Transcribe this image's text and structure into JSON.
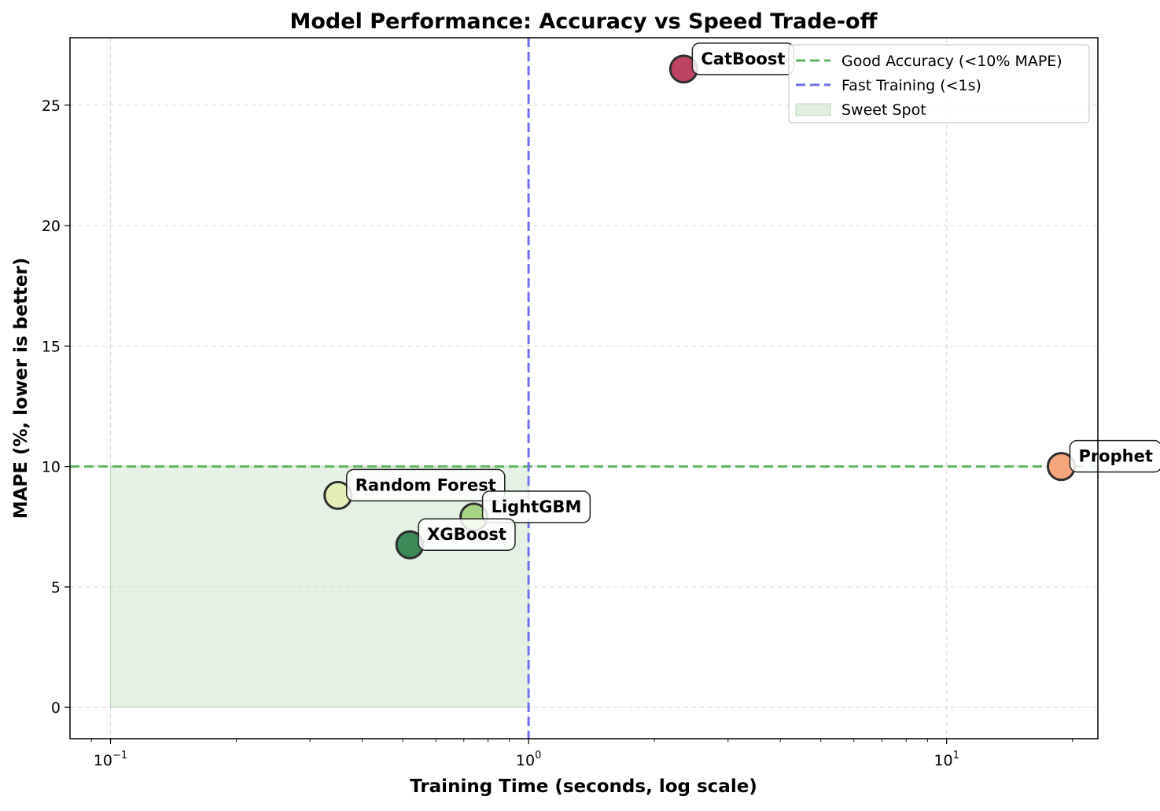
{
  "chart_data": {
    "type": "scatter",
    "title": "Model Performance: Accuracy vs Speed Trade-off",
    "xlabel": "Training Time (seconds, log scale)",
    "ylabel": "MAPE (%, lower is better)",
    "xscale": "log",
    "xlim": [
      0.08,
      23
    ],
    "ylim": [
      -1.3,
      27.8
    ],
    "x_ticks": [
      {
        "value": 0.1,
        "base": "10",
        "exp": "−1"
      },
      {
        "value": 1,
        "base": "10",
        "exp": "0"
      },
      {
        "value": 10,
        "base": "10",
        "exp": "1"
      }
    ],
    "y_ticks": [
      0,
      5,
      10,
      15,
      20,
      25
    ],
    "grid": true,
    "legend_position": "top-right",
    "points": [
      {
        "label": "CatBoost",
        "x": 2.35,
        "y": 26.5,
        "color": "#be4262"
      },
      {
        "label": "Prophet",
        "x": 18.8,
        "y": 10.0,
        "color": "#f5a57c"
      },
      {
        "label": "Random Forest",
        "x": 0.35,
        "y": 8.8,
        "color": "#e3eeb6"
      },
      {
        "label": "LightGBM",
        "x": 0.74,
        "y": 7.9,
        "color": "#a5d484"
      },
      {
        "label": "XGBoost",
        "x": 0.52,
        "y": 6.75,
        "color": "#3b8a58"
      }
    ],
    "reference_lines": [
      {
        "orientation": "horizontal",
        "value": 10,
        "label": "Good Accuracy (<10% MAPE)",
        "color": "#5fb65f"
      },
      {
        "orientation": "vertical",
        "value": 1,
        "label": "Fast Training (<1s)",
        "color": "#7070ee"
      }
    ],
    "region": {
      "label": "Sweet Spot",
      "x": [
        0.1,
        1
      ],
      "y": [
        0,
        10
      ],
      "color": "#cfe6cf"
    }
  }
}
